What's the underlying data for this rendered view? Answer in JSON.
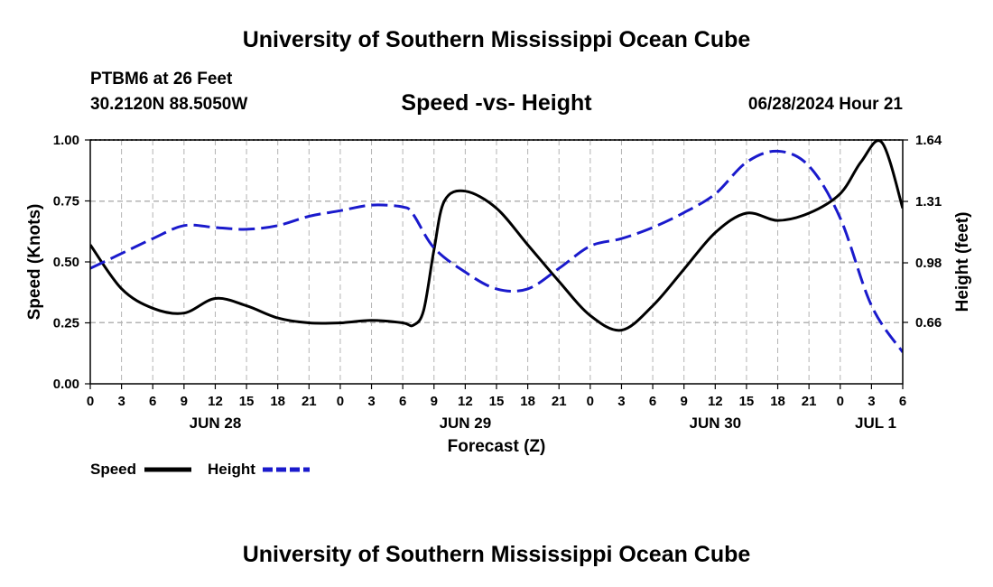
{
  "header": {
    "main_title": "University of Southern Mississippi Ocean Cube",
    "station": "PTBM6 at 26 Feet",
    "coords": "30.2120N  88.5050W",
    "chart_title": "Speed -vs- Height",
    "datetime": "06/28/2024 Hour 21",
    "bottom_title": "University of Southern Mississippi Ocean Cube"
  },
  "colors": {
    "speed": "#000000",
    "height": "#1a1acc",
    "grid": "#b3b3b3"
  },
  "chart_data": {
    "type": "line",
    "title": "Speed -vs- Height",
    "xlabel": "Forecast (Z)",
    "ylabel": "Speed (Knots)",
    "y2label": "Height (feet)",
    "xlim": [
      0,
      78
    ],
    "ylim": [
      0,
      1
    ],
    "y2lim": [
      0.33,
      1.64
    ],
    "x_ticks": [
      0,
      3,
      6,
      9,
      12,
      15,
      18,
      21,
      24,
      27,
      30,
      33,
      36,
      39,
      42,
      45,
      48,
      51,
      54,
      57,
      60,
      63,
      66,
      69,
      72,
      75,
      78
    ],
    "x_tick_labels": [
      "0",
      "3",
      "6",
      "9",
      "12",
      "15",
      "18",
      "21",
      "0",
      "3",
      "6",
      "9",
      "12",
      "15",
      "18",
      "21",
      "0",
      "3",
      "6",
      "9",
      "12",
      "15",
      "18",
      "21",
      "0",
      "3",
      "6"
    ],
    "day_labels": [
      {
        "x": 12,
        "label": "JUN 28"
      },
      {
        "x": 36,
        "label": "JUN 29"
      },
      {
        "x": 60,
        "label": "JUN 30"
      },
      {
        "x": 78,
        "label": "JUL 1"
      }
    ],
    "y_ticks": [
      0,
      0.25,
      0.5,
      0.75,
      1.0
    ],
    "y_tick_labels": [
      "0.00",
      "0.25",
      "0.50",
      "0.75",
      "1.00"
    ],
    "y2_ticks": [
      0.66,
      0.98,
      1.31,
      1.64
    ],
    "y2_tick_labels": [
      "0.66",
      "0.98",
      "1.31",
      "1.64"
    ],
    "grid": true,
    "series": [
      {
        "name": "Speed",
        "axis": "left",
        "style": "solid",
        "x": [
          0,
          3,
          6,
          9,
          12,
          15,
          18,
          21,
          24,
          27,
          30,
          31,
          32,
          33,
          34,
          36,
          39,
          42,
          45,
          48,
          51,
          54,
          57,
          60,
          63,
          66,
          69,
          72,
          74,
          76,
          78
        ],
        "values": [
          0.57,
          0.39,
          0.31,
          0.29,
          0.35,
          0.32,
          0.27,
          0.25,
          0.25,
          0.26,
          0.25,
          0.24,
          0.3,
          0.55,
          0.75,
          0.79,
          0.72,
          0.57,
          0.42,
          0.28,
          0.22,
          0.32,
          0.47,
          0.62,
          0.7,
          0.67,
          0.7,
          0.78,
          0.91,
          0.99,
          0.72
        ]
      },
      {
        "name": "Height",
        "axis": "right",
        "style": "dashed",
        "x": [
          0,
          3,
          6,
          9,
          12,
          15,
          18,
          21,
          24,
          27,
          30,
          31,
          33,
          36,
          39,
          42,
          45,
          48,
          51,
          54,
          57,
          60,
          63,
          66,
          69,
          72,
          75,
          78
        ],
        "values": [
          0.95,
          1.03,
          1.11,
          1.18,
          1.17,
          1.16,
          1.18,
          1.23,
          1.26,
          1.29,
          1.28,
          1.24,
          1.06,
          0.93,
          0.84,
          0.84,
          0.95,
          1.07,
          1.11,
          1.17,
          1.25,
          1.35,
          1.52,
          1.58,
          1.5,
          1.22,
          0.75,
          0.5
        ]
      }
    ],
    "legend": {
      "position": "bottom-left",
      "items": [
        {
          "label": "Speed",
          "style": "solid"
        },
        {
          "label": "Height",
          "style": "dashed"
        }
      ]
    }
  }
}
